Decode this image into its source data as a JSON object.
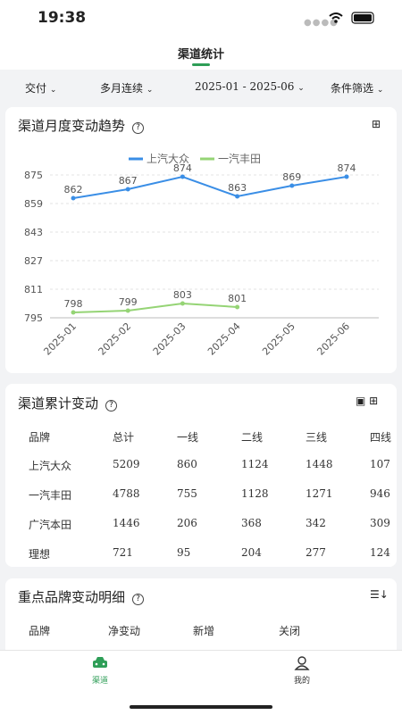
{
  "status": {
    "time": "19:38"
  },
  "header": {
    "title": "渠道统计"
  },
  "filters": [
    "交付",
    "多月连续",
    "2025-01 - 2025-06",
    "条件筛选"
  ],
  "chart_data": {
    "type": "line",
    "title": "渠道月度变动趋势",
    "categories": [
      "2025-01",
      "2025-02",
      "2025-03",
      "2025-04",
      "2025-05",
      "2025-06"
    ],
    "series": [
      {
        "name": "上汽大众",
        "color": "#3a8ee6",
        "values": [
          862,
          867,
          874,
          863,
          869,
          874
        ]
      },
      {
        "name": "一汽丰田",
        "color": "#95d475",
        "values": [
          798,
          799,
          803,
          801,
          null,
          null
        ]
      }
    ],
    "ylim": [
      795,
      875
    ],
    "yticks": [
      795,
      811,
      827,
      843,
      859,
      875
    ],
    "grid": true,
    "legend": "top"
  },
  "table": {
    "title": "渠道累计变动",
    "columns": [
      "品牌",
      "总计",
      "一线",
      "二线",
      "三线",
      "四线"
    ],
    "rows": [
      [
        "上汽大众",
        5209,
        860,
        1124,
        1448,
        "107"
      ],
      [
        "一汽丰田",
        4788,
        755,
        1128,
        1271,
        "946"
      ],
      [
        "广汽本田",
        1446,
        206,
        368,
        342,
        "309"
      ],
      [
        "理想",
        721,
        95,
        204,
        277,
        "124"
      ]
    ]
  },
  "detail": {
    "title": "重点品牌变动明细",
    "columns": [
      "品牌",
      "净变动",
      "新增",
      "关闭"
    ]
  },
  "tabs": [
    "渠道",
    "我的"
  ]
}
